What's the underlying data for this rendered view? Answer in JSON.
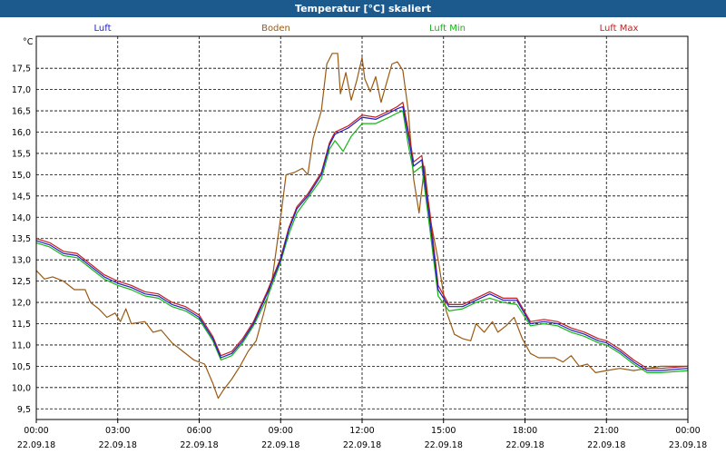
{
  "window": {
    "title": "Temperatur [°C] skaliert"
  },
  "colors": {
    "Luft": "#1f1fc7",
    "Boden": "#9a5a13",
    "Luft Min": "#17b617",
    "Luft Max": "#c41f1f",
    "grid": "#000000"
  },
  "chart_data": {
    "type": "line",
    "ylabel": "°C",
    "ylim": [
      9.25,
      18.25
    ],
    "xlim": [
      0,
      24
    ],
    "y_ticks": [
      "9,5",
      "10,0",
      "10,5",
      "11,0",
      "11,5",
      "12,0",
      "12,5",
      "13,0",
      "13,5",
      "14,0",
      "14,5",
      "15,0",
      "15,5",
      "16,0",
      "16,5",
      "17,0",
      "17,5"
    ],
    "x_ticks": [
      {
        "time": "00:00",
        "date": "22.09.18"
      },
      {
        "time": "03:00",
        "date": "22.09.18"
      },
      {
        "time": "06:00",
        "date": "22.09.18"
      },
      {
        "time": "09:00",
        "date": "22.09.18"
      },
      {
        "time": "12:00",
        "date": "22.09.18"
      },
      {
        "time": "15:00",
        "date": "22.09.18"
      },
      {
        "time": "18:00",
        "date": "22.09.18"
      },
      {
        "time": "21:00",
        "date": "22.09.18"
      },
      {
        "time": "00:00",
        "date": "23.09.18"
      }
    ],
    "grid": true,
    "legend_position": "top",
    "series": [
      {
        "name": "Luft",
        "points": [
          [
            0,
            13.45
          ],
          [
            0.5,
            13.35
          ],
          [
            1,
            13.15
          ],
          [
            1.5,
            13.1
          ],
          [
            2,
            12.85
          ],
          [
            2.5,
            12.6
          ],
          [
            3,
            12.45
          ],
          [
            3.5,
            12.35
          ],
          [
            4,
            12.2
          ],
          [
            4.5,
            12.15
          ],
          [
            5,
            11.95
          ],
          [
            5.5,
            11.85
          ],
          [
            6,
            11.65
          ],
          [
            6.5,
            11.15
          ],
          [
            6.8,
            10.7
          ],
          [
            7.2,
            10.8
          ],
          [
            7.6,
            11.1
          ],
          [
            8,
            11.5
          ],
          [
            8.5,
            12.2
          ],
          [
            9,
            13.0
          ],
          [
            9.3,
            13.7
          ],
          [
            9.6,
            14.2
          ],
          [
            10,
            14.5
          ],
          [
            10.5,
            15.0
          ],
          [
            10.8,
            15.7
          ],
          [
            11,
            15.95
          ],
          [
            11.5,
            16.1
          ],
          [
            12,
            16.35
          ],
          [
            12.5,
            16.3
          ],
          [
            13,
            16.45
          ],
          [
            13.3,
            16.55
          ],
          [
            13.5,
            16.6
          ],
          [
            13.7,
            15.9
          ],
          [
            13.9,
            15.2
          ],
          [
            14.2,
            15.35
          ],
          [
            14.5,
            13.9
          ],
          [
            14.8,
            12.3
          ],
          [
            15.2,
            11.9
          ],
          [
            15.7,
            11.9
          ],
          [
            16.2,
            12.05
          ],
          [
            16.7,
            12.2
          ],
          [
            17.2,
            12.05
          ],
          [
            17.7,
            12.05
          ],
          [
            18.2,
            11.5
          ],
          [
            18.7,
            11.55
          ],
          [
            19.2,
            11.5
          ],
          [
            19.7,
            11.35
          ],
          [
            20.2,
            11.25
          ],
          [
            20.7,
            11.1
          ],
          [
            21,
            11.05
          ],
          [
            21.5,
            10.85
          ],
          [
            22,
            10.6
          ],
          [
            22.5,
            10.4
          ],
          [
            23,
            10.4
          ],
          [
            24,
            10.45
          ]
        ]
      },
      {
        "name": "Boden",
        "points": [
          [
            0,
            12.75
          ],
          [
            0.3,
            12.55
          ],
          [
            0.6,
            12.6
          ],
          [
            1,
            12.5
          ],
          [
            1.4,
            12.3
          ],
          [
            1.8,
            12.3
          ],
          [
            2,
            12.0
          ],
          [
            2.3,
            11.85
          ],
          [
            2.6,
            11.65
          ],
          [
            2.9,
            11.75
          ],
          [
            3.1,
            11.55
          ],
          [
            3.3,
            11.85
          ],
          [
            3.5,
            11.5
          ],
          [
            4,
            11.55
          ],
          [
            4.3,
            11.3
          ],
          [
            4.6,
            11.35
          ],
          [
            5,
            11.05
          ],
          [
            5.4,
            10.85
          ],
          [
            5.8,
            10.65
          ],
          [
            6.2,
            10.55
          ],
          [
            6.5,
            10.1
          ],
          [
            6.7,
            9.75
          ],
          [
            6.9,
            9.95
          ],
          [
            7.2,
            10.2
          ],
          [
            7.5,
            10.5
          ],
          [
            7.8,
            10.85
          ],
          [
            8.1,
            11.1
          ],
          [
            8.4,
            11.8
          ],
          [
            8.7,
            12.6
          ],
          [
            9,
            14.0
          ],
          [
            9.2,
            15.0
          ],
          [
            9.5,
            15.05
          ],
          [
            9.8,
            15.15
          ],
          [
            10,
            15.0
          ],
          [
            10.2,
            15.85
          ],
          [
            10.5,
            16.5
          ],
          [
            10.7,
            17.6
          ],
          [
            10.9,
            17.85
          ],
          [
            11.1,
            17.85
          ],
          [
            11.2,
            16.9
          ],
          [
            11.4,
            17.4
          ],
          [
            11.6,
            16.75
          ],
          [
            11.8,
            17.2
          ],
          [
            12,
            17.75
          ],
          [
            12.1,
            17.25
          ],
          [
            12.3,
            16.95
          ],
          [
            12.5,
            17.3
          ],
          [
            12.7,
            16.7
          ],
          [
            12.9,
            17.15
          ],
          [
            13.1,
            17.6
          ],
          [
            13.3,
            17.65
          ],
          [
            13.5,
            17.45
          ],
          [
            13.7,
            16.5
          ],
          [
            13.9,
            14.9
          ],
          [
            14.1,
            14.1
          ],
          [
            14.3,
            15.2
          ],
          [
            14.5,
            14.0
          ],
          [
            14.8,
            13.0
          ],
          [
            15.1,
            11.8
          ],
          [
            15.4,
            11.25
          ],
          [
            15.7,
            11.15
          ],
          [
            16,
            11.1
          ],
          [
            16.2,
            11.5
          ],
          [
            16.5,
            11.3
          ],
          [
            16.8,
            11.55
          ],
          [
            17,
            11.3
          ],
          [
            17.3,
            11.45
          ],
          [
            17.6,
            11.65
          ],
          [
            17.9,
            11.15
          ],
          [
            18.2,
            10.8
          ],
          [
            18.5,
            10.7
          ],
          [
            18.8,
            10.7
          ],
          [
            19.1,
            10.7
          ],
          [
            19.4,
            10.6
          ],
          [
            19.7,
            10.75
          ],
          [
            20,
            10.5
          ],
          [
            20.3,
            10.55
          ],
          [
            20.6,
            10.35
          ],
          [
            21,
            10.4
          ],
          [
            21.5,
            10.45
          ],
          [
            22,
            10.4
          ],
          [
            22.5,
            10.45
          ],
          [
            23,
            10.5
          ],
          [
            24,
            10.5
          ]
        ]
      },
      {
        "name": "Luft Min",
        "points": [
          [
            0,
            13.4
          ],
          [
            0.5,
            13.3
          ],
          [
            1,
            13.1
          ],
          [
            1.5,
            13.05
          ],
          [
            2,
            12.8
          ],
          [
            2.5,
            12.55
          ],
          [
            3,
            12.4
          ],
          [
            3.5,
            12.3
          ],
          [
            4,
            12.15
          ],
          [
            4.5,
            12.1
          ],
          [
            5,
            11.9
          ],
          [
            5.5,
            11.8
          ],
          [
            6,
            11.6
          ],
          [
            6.5,
            11.1
          ],
          [
            6.8,
            10.65
          ],
          [
            7.2,
            10.75
          ],
          [
            7.6,
            11.05
          ],
          [
            8,
            11.45
          ],
          [
            8.5,
            12.1
          ],
          [
            9,
            12.95
          ],
          [
            9.3,
            13.6
          ],
          [
            9.6,
            14.1
          ],
          [
            10,
            14.45
          ],
          [
            10.5,
            14.9
          ],
          [
            10.8,
            15.6
          ],
          [
            11,
            15.8
          ],
          [
            11.3,
            15.55
          ],
          [
            11.6,
            15.9
          ],
          [
            12,
            16.2
          ],
          [
            12.5,
            16.2
          ],
          [
            13,
            16.35
          ],
          [
            13.3,
            16.45
          ],
          [
            13.5,
            16.5
          ],
          [
            13.7,
            15.7
          ],
          [
            13.9,
            15.05
          ],
          [
            14.2,
            15.2
          ],
          [
            14.5,
            13.7
          ],
          [
            14.8,
            12.15
          ],
          [
            15.2,
            11.8
          ],
          [
            15.7,
            11.85
          ],
          [
            16.2,
            12.0
          ],
          [
            16.7,
            12.1
          ],
          [
            17.2,
            12.0
          ],
          [
            17.7,
            11.95
          ],
          [
            18.2,
            11.45
          ],
          [
            18.7,
            11.5
          ],
          [
            19.2,
            11.45
          ],
          [
            19.7,
            11.3
          ],
          [
            20.2,
            11.2
          ],
          [
            20.7,
            11.05
          ],
          [
            21,
            11.0
          ],
          [
            21.5,
            10.8
          ],
          [
            22,
            10.55
          ],
          [
            22.5,
            10.35
          ],
          [
            23,
            10.35
          ],
          [
            24,
            10.4
          ]
        ]
      },
      {
        "name": "Luft Max",
        "points": [
          [
            0,
            13.5
          ],
          [
            0.5,
            13.4
          ],
          [
            1,
            13.2
          ],
          [
            1.5,
            13.15
          ],
          [
            2,
            12.9
          ],
          [
            2.5,
            12.65
          ],
          [
            3,
            12.5
          ],
          [
            3.5,
            12.4
          ],
          [
            4,
            12.25
          ],
          [
            4.5,
            12.2
          ],
          [
            5,
            12.0
          ],
          [
            5.5,
            11.9
          ],
          [
            6,
            11.7
          ],
          [
            6.5,
            11.2
          ],
          [
            6.8,
            10.75
          ],
          [
            7.2,
            10.85
          ],
          [
            7.6,
            11.15
          ],
          [
            8,
            11.55
          ],
          [
            8.5,
            12.25
          ],
          [
            9,
            13.05
          ],
          [
            9.3,
            13.75
          ],
          [
            9.6,
            14.25
          ],
          [
            10,
            14.55
          ],
          [
            10.5,
            15.05
          ],
          [
            10.8,
            15.75
          ],
          [
            11,
            16.0
          ],
          [
            11.5,
            16.15
          ],
          [
            12,
            16.4
          ],
          [
            12.5,
            16.35
          ],
          [
            13,
            16.5
          ],
          [
            13.3,
            16.6
          ],
          [
            13.5,
            16.7
          ],
          [
            13.7,
            16.05
          ],
          [
            13.9,
            15.3
          ],
          [
            14.2,
            15.45
          ],
          [
            14.5,
            14.1
          ],
          [
            14.8,
            12.4
          ],
          [
            15.2,
            11.95
          ],
          [
            15.7,
            11.95
          ],
          [
            16.2,
            12.1
          ],
          [
            16.7,
            12.25
          ],
          [
            17.2,
            12.1
          ],
          [
            17.7,
            12.1
          ],
          [
            18.2,
            11.55
          ],
          [
            18.7,
            11.6
          ],
          [
            19.2,
            11.55
          ],
          [
            19.7,
            11.4
          ],
          [
            20.2,
            11.3
          ],
          [
            20.7,
            11.15
          ],
          [
            21,
            11.1
          ],
          [
            21.5,
            10.9
          ],
          [
            22,
            10.65
          ],
          [
            22.5,
            10.45
          ],
          [
            23,
            10.45
          ],
          [
            24,
            10.5
          ]
        ]
      }
    ]
  }
}
